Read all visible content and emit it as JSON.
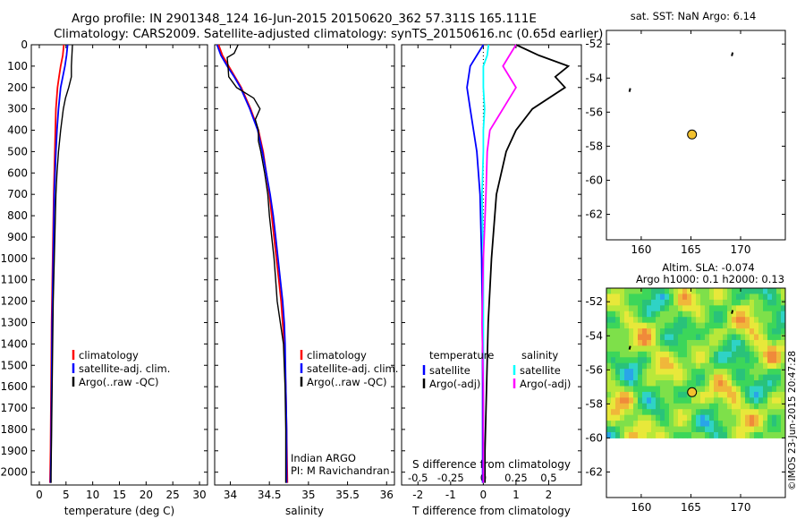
{
  "title": {
    "line1": "Argo profile: IN 2901348_124 16-Jun-2015 20150620_362 57.311S 165.111E",
    "line2": "Climatology: CARS2009. Satellite-adjusted climatology: synTS_20150616.nc (0.65d earlier)"
  },
  "colors": {
    "climatology": "#ff0000",
    "satellite": "#0000ff",
    "argo": "#000000",
    "salinity_sat": "#00ffff",
    "salinity_argo": "#ff00ff",
    "float_marker": "#f2c12e"
  },
  "depth_axis": {
    "ticks": [
      "0",
      "100",
      "200",
      "300",
      "400",
      "500",
      "600",
      "700",
      "800",
      "900",
      "1000",
      "1100",
      "1200",
      "1300",
      "1400",
      "1500",
      "1600",
      "1700",
      "1800",
      "1900",
      "2000"
    ]
  },
  "chart_data": [
    {
      "type": "line",
      "xlabel": "temperature (deg C)",
      "xticks": [
        "0",
        "5",
        "10",
        "15",
        "20",
        "25",
        "30"
      ],
      "xlim": [
        -1.5,
        31.5
      ],
      "ylim": [
        2060,
        0
      ],
      "legend": [
        "climatology",
        "satellite-adj. clim.",
        "Argo(..raw -QC)"
      ],
      "series": [
        {
          "name": "climatology",
          "depth": [
            0,
            50,
            100,
            150,
            200,
            300,
            400,
            500,
            700,
            1000,
            1300,
            1600,
            1900,
            2050
          ],
          "values": [
            4.6,
            4.4,
            4.0,
            3.7,
            3.4,
            3.1,
            3.0,
            2.9,
            2.7,
            2.5,
            2.3,
            2.2,
            2.1,
            2.0
          ]
        },
        {
          "name": "satellite-adj. clim.",
          "depth": [
            0,
            50,
            100,
            150,
            200,
            300,
            400,
            500,
            700,
            1000,
            1300,
            1600,
            1900,
            2050
          ],
          "values": [
            5.3,
            5.1,
            4.8,
            4.4,
            4.0,
            3.6,
            3.3,
            3.1,
            2.8,
            2.6,
            2.4,
            2.3,
            2.2,
            2.1
          ]
        },
        {
          "name": "Argo(..raw -QC)",
          "depth": [
            0,
            50,
            100,
            150,
            200,
            250,
            300,
            400,
            500,
            600,
            700,
            800,
            1000,
            1200,
            1400,
            1600,
            1800,
            2000,
            2050
          ],
          "values": [
            6.2,
            6.1,
            6.0,
            6.0,
            5.5,
            4.9,
            4.5,
            4.0,
            3.6,
            3.3,
            3.1,
            3.0,
            2.8,
            2.6,
            2.5,
            2.4,
            2.3,
            2.2,
            2.2
          ]
        }
      ]
    },
    {
      "type": "line",
      "xlabel": "salinity",
      "xticks": [
        "34",
        "34.5",
        "35",
        "35.5",
        "36"
      ],
      "xlim": [
        33.8,
        36.1
      ],
      "ylim": [
        2060,
        0
      ],
      "legend": [
        "climatology",
        "satellite-adj. clim.",
        "Argo(..raw -QC)"
      ],
      "annotation": [
        "Indian ARGO",
        "PI: M Ravichandran"
      ],
      "series": [
        {
          "name": "climatology",
          "depth": [
            0,
            50,
            100,
            150,
            200,
            300,
            400,
            500,
            600,
            700,
            800,
            900,
            1000,
            1100,
            1200,
            1300,
            1400,
            1600,
            1800,
            2050
          ],
          "values": [
            33.85,
            33.9,
            33.98,
            34.06,
            34.14,
            34.26,
            34.36,
            34.42,
            34.46,
            34.5,
            34.53,
            34.56,
            34.59,
            34.62,
            34.65,
            34.67,
            34.69,
            34.71,
            34.72,
            34.73
          ]
        },
        {
          "name": "satellite-adj. clim.",
          "depth": [
            0,
            50,
            100,
            150,
            200,
            300,
            400,
            500,
            600,
            700,
            800,
            900,
            1000,
            1100,
            1200,
            1300,
            1400,
            1600,
            1800,
            2050
          ],
          "values": [
            33.83,
            33.88,
            33.96,
            34.05,
            34.13,
            34.25,
            34.35,
            34.41,
            34.46,
            34.51,
            34.55,
            34.58,
            34.61,
            34.64,
            34.67,
            34.69,
            34.7,
            34.71,
            34.72,
            34.72
          ]
        },
        {
          "name": "Argo(..raw -QC)",
          "depth": [
            0,
            40,
            60,
            100,
            150,
            200,
            250,
            300,
            350,
            400,
            450,
            500,
            600,
            700,
            800,
            900,
            1000,
            1100,
            1200,
            1300,
            1400,
            1500,
            1600,
            1800,
            2050
          ],
          "values": [
            34.1,
            34.05,
            33.96,
            33.97,
            33.98,
            34.08,
            34.3,
            34.38,
            34.32,
            34.36,
            34.36,
            34.39,
            34.44,
            34.48,
            34.5,
            34.53,
            34.56,
            34.58,
            34.6,
            34.64,
            34.68,
            34.69,
            34.7,
            34.71,
            34.71
          ]
        }
      ]
    },
    {
      "type": "line",
      "xlabel": "T difference from climatology",
      "xticks": [
        "-2",
        "-1",
        "0",
        "1",
        "2"
      ],
      "xlim": [
        -2.5,
        3.0
      ],
      "top_xlabel": "S difference from climatology",
      "top_xticks": [
        "-0.5",
        "-0.25",
        "0",
        "0.25",
        "0.5"
      ],
      "ylim": [
        2060,
        0
      ],
      "legend": [
        "temperature",
        "satellite",
        "Argo(-adj)",
        "salinity",
        "satellite",
        "Argo(-adj)"
      ],
      "series": [
        {
          "name": "temperature satellite",
          "depth": [
            0,
            50,
            100,
            200,
            300,
            400,
            500,
            700,
            1000,
            1300,
            1600,
            1900,
            2050
          ],
          "values": [
            0.0,
            -0.2,
            -0.4,
            -0.5,
            -0.4,
            -0.3,
            -0.2,
            -0.1,
            -0.05,
            -0.03,
            -0.02,
            -0.02,
            -0.02
          ]
        },
        {
          "name": "temperature Argo(-adj)",
          "depth": [
            0,
            50,
            100,
            150,
            200,
            300,
            400,
            500,
            700,
            1000,
            1300,
            1600,
            1900,
            2050
          ],
          "values": [
            1.0,
            1.7,
            2.6,
            2.2,
            2.5,
            1.5,
            1.0,
            0.7,
            0.4,
            0.25,
            0.15,
            0.1,
            0.05,
            0.05
          ]
        },
        {
          "name": "salinity satellite",
          "depth": [
            0,
            50,
            100,
            200,
            300,
            400,
            500,
            700,
            1000,
            1300,
            1600,
            1900,
            2050
          ],
          "values": [
            0.04,
            0.03,
            0.0,
            0.0,
            0.01,
            0.0,
            0.0,
            -0.01,
            0.0,
            0.0,
            0.0,
            0.0,
            0.0
          ]
        },
        {
          "name": "salinity Argo(-adj)",
          "depth": [
            0,
            50,
            100,
            200,
            300,
            400,
            500,
            700,
            1000,
            1300,
            1600,
            1900,
            2050
          ],
          "values": [
            0.25,
            0.2,
            0.15,
            0.25,
            0.15,
            0.05,
            0.03,
            0.02,
            0.0,
            -0.01,
            0.0,
            0.0,
            0.0
          ]
        }
      ]
    },
    {
      "type": "scatter",
      "title": "sat. SST: NaN Argo: 6.14",
      "xticks": [
        "160",
        "165",
        "170"
      ],
      "yticks": [
        "-52",
        "-54",
        "-56",
        "-58",
        "-60",
        "-62"
      ],
      "xlim": [
        156.5,
        174.5
      ],
      "ylim": [
        -63.5,
        -51.2
      ],
      "points": [
        {
          "lon": 165.111,
          "lat": -57.311,
          "label": "float"
        },
        {
          "lon": 158.9,
          "lat": -54.7,
          "label": "dot"
        },
        {
          "lon": 169.2,
          "lat": -52.6,
          "label": "dot"
        }
      ]
    },
    {
      "type": "heatmap",
      "title_line1": "Altim. SLA: -0.074",
      "title_line2": "Argo h1000: 0.1 h2000: 0.13",
      "xticks": [
        "160",
        "165",
        "170"
      ],
      "yticks": [
        "-52",
        "-54",
        "-56",
        "-58",
        "-60",
        "-62"
      ],
      "xlim": [
        156.5,
        174.5
      ],
      "ylim": [
        -63.5,
        -51.2
      ],
      "field_lat_range": [
        -60.0,
        -51.2
      ],
      "points": [
        {
          "lon": 165.111,
          "lat": -57.311,
          "label": "float"
        },
        {
          "lon": 158.9,
          "lat": -54.7,
          "label": "dot"
        },
        {
          "lon": 169.2,
          "lat": -52.6,
          "label": "dot"
        }
      ]
    }
  ],
  "credit": "©IMOS 23-Jun-2015 20:47:28"
}
